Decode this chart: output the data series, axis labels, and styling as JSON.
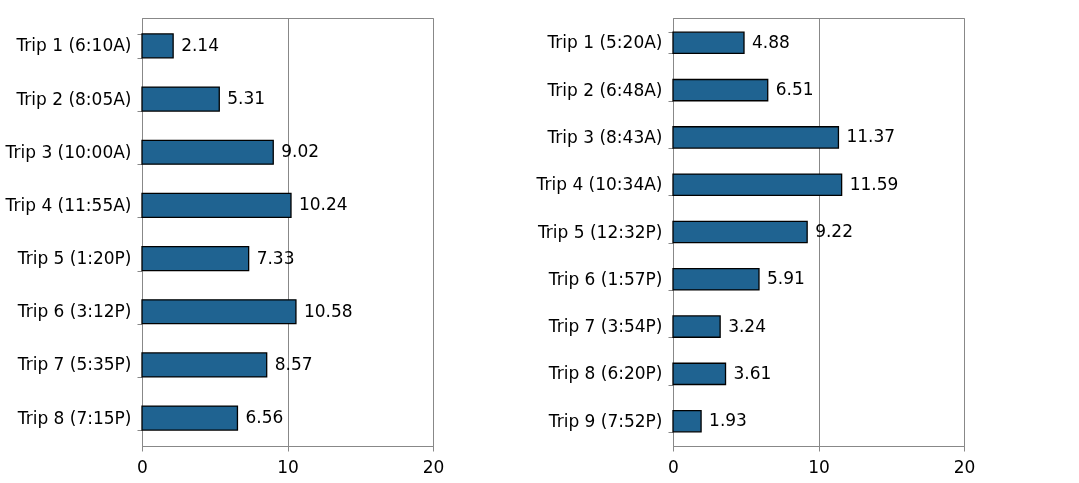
{
  "chart_data": [
    {
      "type": "bar",
      "orientation": "horizontal",
      "categories": [
        "Trip 1 (6:10A)",
        "Trip 2 (8:05A)",
        "Trip 3 (10:00A)",
        "Trip 4 (11:55A)",
        "Trip 5 (1:20P)",
        "Trip 6 (3:12P)",
        "Trip 7 (5:35P)",
        "Trip 8 (7:15P)"
      ],
      "values": [
        2.14,
        5.31,
        9.02,
        10.24,
        7.33,
        10.58,
        8.57,
        6.56
      ],
      "color": "#1f6391",
      "xlim": [
        0,
        20
      ],
      "xticks": [
        0,
        10,
        20
      ],
      "grid": "x",
      "data_labels": true
    },
    {
      "type": "bar",
      "orientation": "horizontal",
      "categories": [
        "Trip 1 (5:20A)",
        "Trip 2 (6:48A)",
        "Trip 3 (8:43A)",
        "Trip 4 (10:34A)",
        "Trip 5 (12:32P)",
        "Trip 6 (1:57P)",
        "Trip 7 (3:54P)",
        "Trip 8 (6:20P)",
        "Trip 9 (7:52P)"
      ],
      "values": [
        4.88,
        6.51,
        11.37,
        11.59,
        9.22,
        5.91,
        3.24,
        3.61,
        1.93
      ],
      "color": "#1f6391",
      "xlim": [
        0,
        20
      ],
      "xticks": [
        0,
        10,
        20
      ],
      "grid": "x",
      "data_labels": true
    }
  ]
}
